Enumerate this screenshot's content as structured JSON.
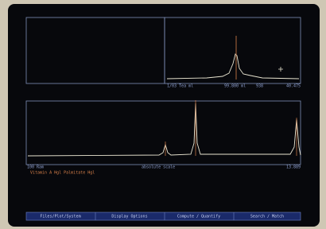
{
  "top_axis_labels": [
    "1/03 Tea ml",
    "99.800 ml",
    "938",
    "40.475"
  ],
  "bottom_axis_labels": [
    "100 Ram",
    "absolute scale",
    "13.889"
  ],
  "sample_label": "Vitamin A Hgl Palmitate Hgl",
  "menu": [
    "Files/Plot/System",
    "Display Options",
    "Compute / Quantify",
    "Search / Match"
  ]
}
